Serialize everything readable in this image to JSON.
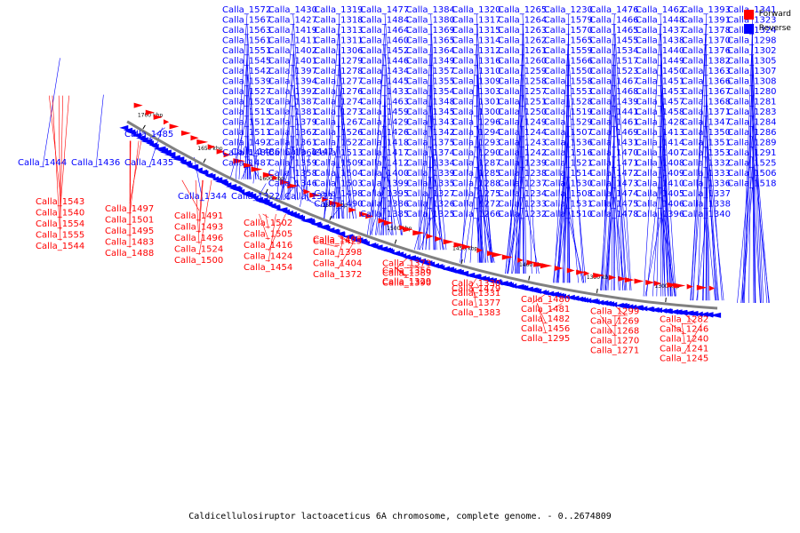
{
  "title": "Caldicellulosiruptor lactoaceticus 6A chromosome, complete genome. - 0..2674809",
  "legend": [
    {
      "label": "Forward",
      "color": "#ff0000"
    },
    {
      "label": "Reverse",
      "color": "#0000ff"
    }
  ],
  "colors": {
    "forward": "#ff0000",
    "reverse": "#0000ff",
    "backbone": "#808080"
  },
  "ticks": [
    "1700 kbp",
    "1650 kbp",
    "1600 kbp",
    "1550 kbp",
    "1500 kbp",
    "1450 kbp",
    "1400 kbp",
    "1350 kbp",
    "1300 kbp"
  ],
  "reverse_genes": [
    "Calla_1572",
    "Calla_1567",
    "Calla_1563",
    "Calla_1561",
    "Calla_1551",
    "Calla_1545",
    "Calla_1542",
    "Calla_1539",
    "Calla_1527",
    "Calla_1520",
    "Calla_1515",
    "Calla_1512",
    "Calla_1511",
    "Calla_1492",
    "Calla_1489",
    "Calla_1487",
    "Calla_1486",
    "Calla_1447",
    "Calla_1444",
    "Calla_1436",
    "Calla_1435",
    "Calla_1430",
    "Calla_1427",
    "Calla_1419",
    "Calla_1411",
    "Calla_1402",
    "Calla_1401",
    "Calla_1397",
    "Calla_1394",
    "Calla_1392",
    "Calla_1387",
    "Calla_1381",
    "Calla_1379",
    "Calla_1362",
    "Calla_1361",
    "Calla_1360",
    "Calla_1359",
    "Calla_1358",
    "Calla_1346",
    "Calla_1344",
    "Calla_1322",
    "Calla_1321",
    "Calla_1319",
    "Calla_1318",
    "Calla_1313",
    "Calla_1311",
    "Calla_1306",
    "Calla_1279",
    "Calla_1278",
    "Calla_1277",
    "Calla_1276",
    "Calla_1274",
    "Calla_1273",
    "Calla_1267",
    "Calla_1526",
    "Calla_1522",
    "Calla_1513",
    "Calla_1509",
    "Calla_1504",
    "Calla_1503",
    "Calla_1498",
    "Calla_1490",
    "Calla_1485",
    "Calla_1477",
    "Calla_1484",
    "Calla_1464",
    "Calla_1460",
    "Calla_1452",
    "Calla_1446",
    "Calla_1434",
    "Calla_1445",
    "Calla_1433",
    "Calla_1463",
    "Calla_1459",
    "Calla_1429",
    "Calla_1426",
    "Calla_1418",
    "Calla_1417",
    "Calla_1412",
    "Calla_1400",
    "Calla_1399",
    "Calla_1395",
    "Calla_1386",
    "Calla_1385",
    "Calla_1384",
    "Calla_1380",
    "Calla_1369",
    "Calla_1365",
    "Calla_1364",
    "Calla_1349",
    "Calla_1357",
    "Calla_1355",
    "Calla_1354",
    "Calla_1348",
    "Calla_1345",
    "Calla_1343",
    "Calla_1342",
    "Calla_1375",
    "Calla_1374",
    "Calla_1334",
    "Calla_1339",
    "Calla_1335",
    "Calla_1327",
    "Calla_1326",
    "Calla_1325",
    "Calla_1320",
    "Calla_1317",
    "Calla_1315",
    "Calla_1314",
    "Calla_1312",
    "Calla_1316",
    "Calla_1310",
    "Calla_1309",
    "Calla_1303",
    "Calla_1301",
    "Calla_1300",
    "Calla_1296",
    "Calla_1294",
    "Calla_1293",
    "Calla_1290",
    "Calla_1287",
    "Calla_1285",
    "Calla_1288",
    "Calla_1275",
    "Calla_1272",
    "Calla_1266",
    "Calla_1265",
    "Calla_1264",
    "Calla_1263",
    "Calla_1262",
    "Calla_1261",
    "Calla_1260",
    "Calla_1259",
    "Calla_1258",
    "Calla_1257",
    "Calla_1251",
    "Calla_1250",
    "Calla_1249",
    "Calla_1244",
    "Calla_1243",
    "Calla_1242",
    "Calla_1239",
    "Calla_1238",
    "Calla_1237",
    "Calla_1234",
    "Calla_1233",
    "Calla_1232",
    "Calla_1230",
    "Calla_1579",
    "Calla_1570",
    "Calla_1565",
    "Calla_1559",
    "Calla_1566",
    "Calla_1550",
    "Calla_1558",
    "Calla_1553",
    "Calla_1528",
    "Calla_1519",
    "Calla_1529",
    "Calla_1507",
    "Calla_1536",
    "Calla_1516",
    "Calla_1521",
    "Calla_1514",
    "Calla_1530",
    "Calla_1508",
    "Calla_1531",
    "Calla_1510",
    "Calla_1476",
    "Calla_1466",
    "Calla_1465",
    "Calla_1455",
    "Calla_1534",
    "Calla_1517",
    "Calla_1523",
    "Calla_1467",
    "Calla_1468",
    "Calla_1439",
    "Calla_1441",
    "Calla_1461",
    "Calla_1469",
    "Calla_1431",
    "Calla_1470",
    "Calla_1471",
    "Calla_1472",
    "Calla_1473",
    "Calla_1474",
    "Calla_1475",
    "Calla_1478",
    "Calla_1462",
    "Calla_1448",
    "Calla_1437",
    "Calla_1438",
    "Calla_1440",
    "Calla_1449",
    "Calla_1450",
    "Calla_1451",
    "Calla_1453",
    "Calla_1457",
    "Calla_1458",
    "Calla_1428",
    "Calla_1413",
    "Calla_1414",
    "Calla_1407",
    "Calla_1408",
    "Calla_1409",
    "Calla_1410",
    "Calla_1405",
    "Calla_1406",
    "Calla_1396",
    "Calla_1393",
    "Calla_1391",
    "Calla_1378",
    "Calla_1370",
    "Calla_1376",
    "Calla_1382",
    "Calla_1363",
    "Calla_1366",
    "Calla_1367",
    "Calla_1368",
    "Calla_1371",
    "Calla_1347",
    "Calla_1350",
    "Calla_1351",
    "Calla_1353",
    "Calla_1332",
    "Calla_1333",
    "Calla_1336",
    "Calla_1337",
    "Calla_1338",
    "Calla_1340",
    "Calla_1341",
    "Calla_1323",
    "Calla_1324",
    "Calla_1298",
    "Calla_1302",
    "Calla_1305",
    "Calla_1307",
    "Calla_1308",
    "Calla_1280",
    "Calla_1281",
    "Calla_1283",
    "Calla_1284",
    "Calla_1286",
    "Calla_1289",
    "Calla_1291",
    "Calla_1525",
    "Calla_1506",
    "Calla_1518"
  ],
  "forward_genes": [
    "Calla_1543",
    "Calla_1540",
    "Calla_1554",
    "Calla_1555",
    "Calla_1544",
    "Calla_1497",
    "Calla_1501",
    "Calla_1495",
    "Calla_1483",
    "Calla_1488",
    "Calla_1491",
    "Calla_1493",
    "Calla_1496",
    "Calla_1524",
    "Calla_1500",
    "Calla_1502",
    "Calla_1505",
    "Calla_1416",
    "Calla_1424",
    "Calla_1454",
    "Calla_1403",
    "Calla_1425",
    "Calla_1398",
    "Calla_1404",
    "Calla_1372",
    "Calla_1373",
    "Calla_1389",
    "Calla_1390",
    "Calla_1356",
    "Calla_1329",
    "Calla_1330",
    "Calla_1331",
    "Calla_1377",
    "Calla_1383",
    "Calla_1479",
    "Calla_1480",
    "Calla_1481",
    "Calla_1482",
    "Calla_1456",
    "Calla_1295",
    "Calla_1299",
    "Calla_1269",
    "Calla_1268",
    "Calla_1270",
    "Calla_1271",
    "Calla_1282",
    "Calla_1246",
    "Calla_1240",
    "Calla_1241",
    "Calla_1245"
  ]
}
